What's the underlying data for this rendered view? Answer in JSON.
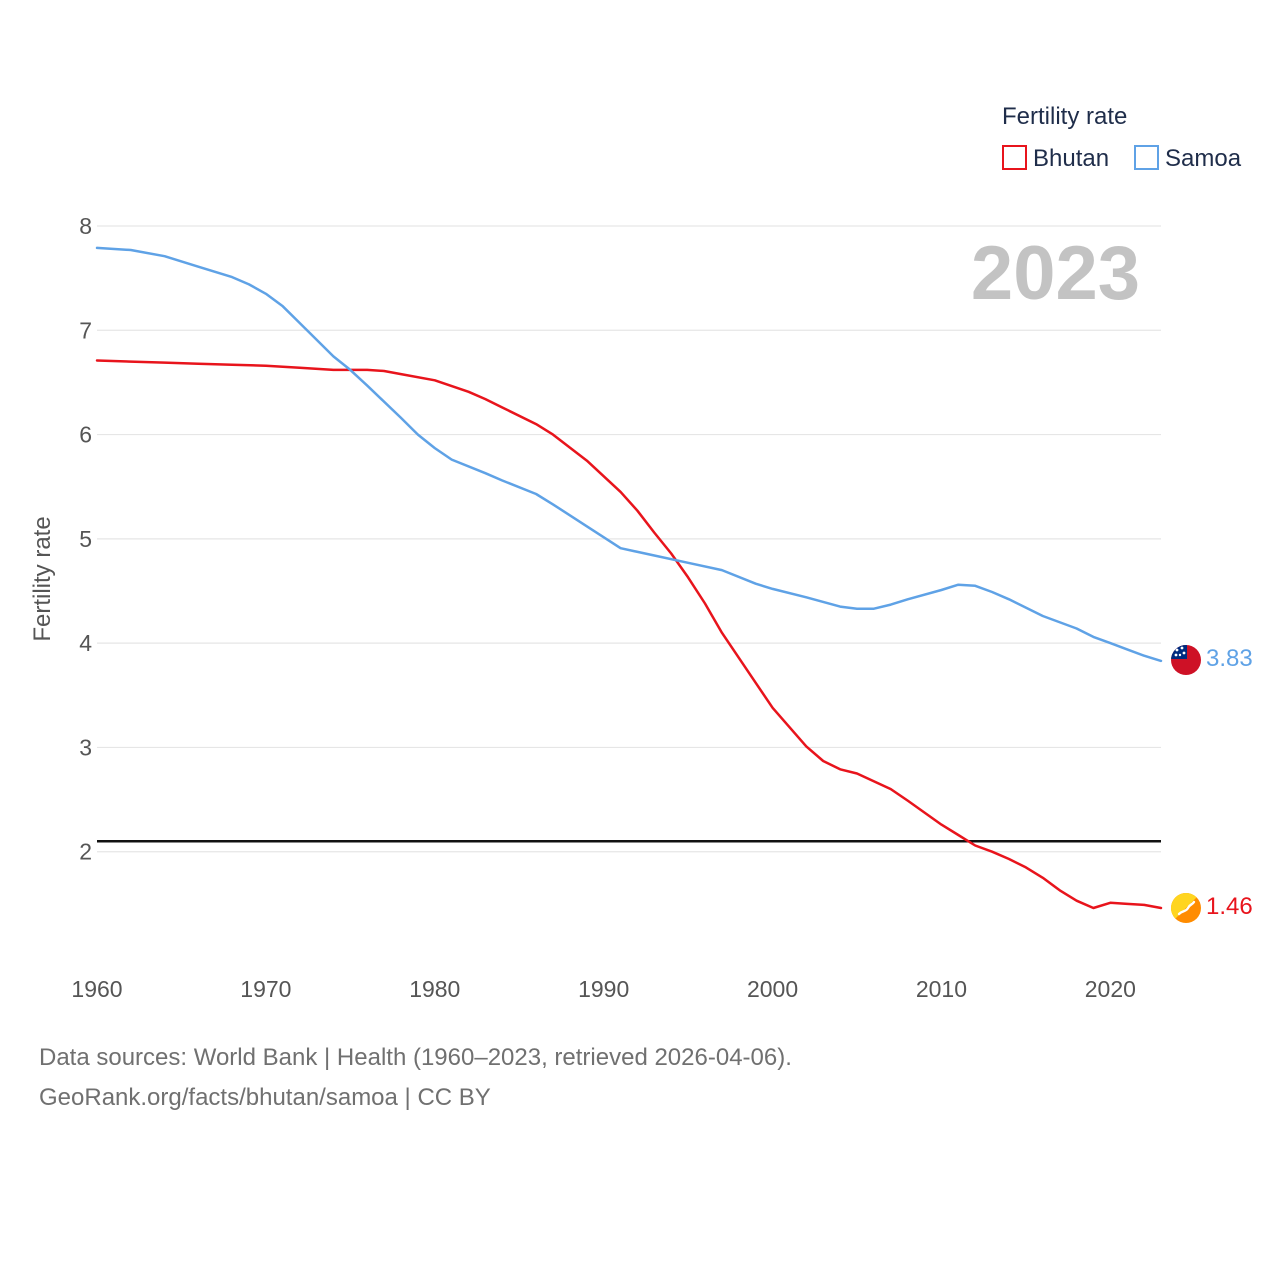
{
  "chart_data": {
    "type": "line",
    "year_label": "2023",
    "xlabel": "",
    "ylabel": "Fertility rate",
    "xlim": [
      1960,
      2023
    ],
    "ylim": [
      1,
      8
    ],
    "x_ticks": [
      1960,
      1970,
      1980,
      1990,
      2000,
      2010,
      2020
    ],
    "y_ticks": [
      2,
      3,
      4,
      5,
      6,
      7,
      8
    ],
    "reference_line": 2.1,
    "legend": {
      "title": "Fertility rate",
      "position": "top-right"
    },
    "series": [
      {
        "name": "Bhutan",
        "color": "#e8141c",
        "end_label": "1.46",
        "x": [
          1960,
          1962,
          1964,
          1966,
          1968,
          1970,
          1972,
          1974,
          1976,
          1977,
          1978,
          1980,
          1982,
          1983,
          1984,
          1986,
          1987,
          1989,
          1991,
          1992,
          1993,
          1994,
          1995,
          1996,
          1997,
          1999,
          2000,
          2002,
          2003,
          2004,
          2005,
          2007,
          2008,
          2010,
          2011,
          2012,
          2013,
          2014,
          2015,
          2016,
          2017,
          2018,
          2019,
          2020,
          2021,
          2022,
          2023
        ],
        "values": [
          6.71,
          6.7,
          6.69,
          6.68,
          6.67,
          6.66,
          6.64,
          6.62,
          6.62,
          6.61,
          6.58,
          6.52,
          6.41,
          6.34,
          6.26,
          6.1,
          6.0,
          5.75,
          5.45,
          5.27,
          5.06,
          4.86,
          4.63,
          4.38,
          4.1,
          3.62,
          3.38,
          3.01,
          2.87,
          2.79,
          2.75,
          2.6,
          2.49,
          2.26,
          2.16,
          2.06,
          2.0,
          1.93,
          1.85,
          1.75,
          1.63,
          1.53,
          1.46,
          1.51,
          1.5,
          1.49,
          1.46
        ]
      },
      {
        "name": "Samoa",
        "color": "#5fa2e6",
        "end_label": "3.83",
        "x": [
          1960,
          1962,
          1964,
          1966,
          1968,
          1969,
          1970,
          1971,
          1972,
          1974,
          1975,
          1976,
          1978,
          1979,
          1980,
          1981,
          1983,
          1984,
          1986,
          1987,
          1989,
          1991,
          1993,
          1995,
          1997,
          1999,
          2000,
          2002,
          2004,
          2005,
          2006,
          2007,
          2008,
          2010,
          2011,
          2012,
          2013,
          2014,
          2016,
          2018,
          2019,
          2020,
          2021,
          2022,
          2023
        ],
        "values": [
          7.79,
          7.77,
          7.71,
          7.61,
          7.51,
          7.44,
          7.35,
          7.23,
          7.07,
          6.75,
          6.62,
          6.47,
          6.16,
          6.0,
          5.87,
          5.76,
          5.63,
          5.56,
          5.43,
          5.33,
          5.12,
          4.91,
          4.84,
          4.77,
          4.7,
          4.57,
          4.52,
          4.44,
          4.35,
          4.33,
          4.33,
          4.37,
          4.42,
          4.51,
          4.56,
          4.55,
          4.49,
          4.42,
          4.26,
          4.14,
          4.06,
          4.0,
          3.94,
          3.88,
          3.83
        ]
      }
    ]
  },
  "footer": {
    "source": "Data sources: World Bank | Health (1960–2023, retrieved 2026-04-06).",
    "credit": "GeoRank.org/facts/bhutan/samoa | CC BY"
  },
  "icons": {
    "bhutan_flag": "bhutan-flag-icon",
    "samoa_flag": "samoa-flag-icon"
  }
}
